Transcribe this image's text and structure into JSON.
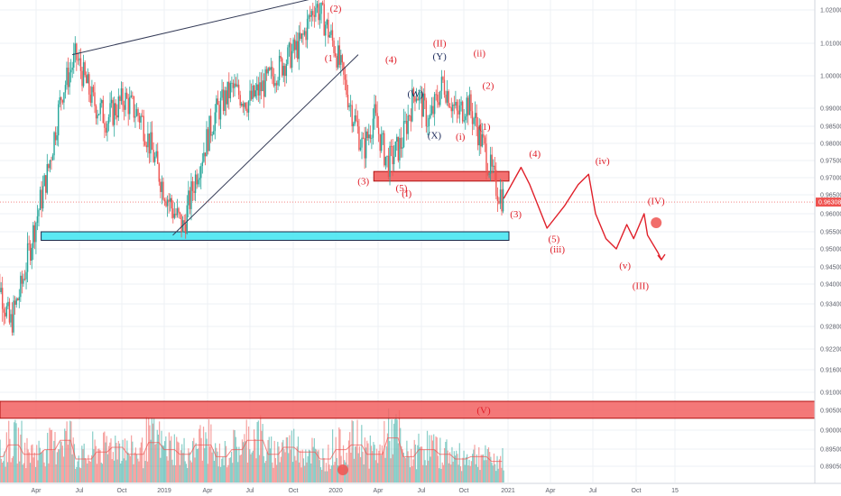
{
  "chart_data": {
    "type": "candlestick",
    "instrument_note": "",
    "colors": {
      "up": "#26a69a",
      "down": "#ef5350",
      "wave_red": "#e0202a",
      "wave_navy": "#1c2a5a",
      "support_zone": "#49e6f2",
      "resistance_zone": "#f26060",
      "current_price_bg": "#ef5350",
      "grid": "#eef0f4",
      "axis_text": "#5d606b"
    },
    "y_axis": {
      "ylim": [
        0.888,
        1.024
      ],
      "ticks": [
        "1.02000",
        "1.01000",
        "1.00000",
        "0.99000",
        "0.98500",
        "0.98000",
        "0.97500",
        "0.97000",
        "0.96500",
        "0.96000",
        "0.95500",
        "0.95000",
        "0.94500",
        "0.94000",
        "0.93400",
        "0.92800",
        "0.92200",
        "0.91600",
        "0.91000",
        "0.90500",
        "0.90000",
        "0.89500",
        "0.89050"
      ],
      "current_price": "0.96308"
    },
    "x_axis": {
      "ticks": [
        "Apr",
        "Jul",
        "Oct",
        "2019",
        "Apr",
        "Jul",
        "Oct",
        "2020",
        "Apr",
        "Jul",
        "Oct",
        "2021",
        "Apr",
        "Jul",
        "Oct",
        "15"
      ]
    },
    "price_path": [
      {
        "t": 0.0,
        "p": 0.965
      },
      {
        "t": 0.05,
        "p": 0.942
      },
      {
        "t": 0.12,
        "p": 0.928
      },
      {
        "t": 0.18,
        "p": 0.938
      },
      {
        "t": 0.26,
        "p": 0.956
      },
      {
        "t": 0.34,
        "p": 0.972
      },
      {
        "t": 0.42,
        "p": 0.995
      },
      {
        "t": 0.5,
        "p": 1.006
      },
      {
        "t": 0.6,
        "p": 0.992
      },
      {
        "t": 0.68,
        "p": 0.987
      },
      {
        "t": 0.78,
        "p": 0.993
      },
      {
        "t": 0.88,
        "p": 0.987
      },
      {
        "t": 0.95,
        "p": 0.976
      },
      {
        "t": 1.0,
        "p": 0.968
      },
      {
        "t": 1.05,
        "p": 0.962
      },
      {
        "t": 1.12,
        "p": 0.956
      },
      {
        "t": 1.2,
        "p": 0.972
      },
      {
        "t": 1.3,
        "p": 0.988
      },
      {
        "t": 1.4,
        "p": 0.996
      },
      {
        "t": 1.5,
        "p": 0.992
      },
      {
        "t": 1.6,
        "p": 0.998
      },
      {
        "t": 1.7,
        "p": 1.004
      },
      {
        "t": 1.8,
        "p": 1.01
      },
      {
        "t": 1.88,
        "p": 1.022
      },
      {
        "t": 1.94,
        "p": 1.016
      },
      {
        "t": 2.0,
        "p": 1.008
      },
      {
        "t": 2.08,
        "p": 0.992
      },
      {
        "t": 2.16,
        "p": 0.978
      },
      {
        "t": 2.22,
        "p": 0.988
      },
      {
        "t": 2.3,
        "p": 0.974
      },
      {
        "t": 2.38,
        "p": 0.98
      },
      {
        "t": 2.46,
        "p": 0.996
      },
      {
        "t": 2.54,
        "p": 0.986
      },
      {
        "t": 2.62,
        "p": 0.998
      },
      {
        "t": 2.7,
        "p": 0.988
      },
      {
        "t": 2.76,
        "p": 0.992
      },
      {
        "t": 2.8,
        "p": 0.987
      },
      {
        "t": 2.86,
        "p": 0.978
      },
      {
        "t": 2.92,
        "p": 0.968
      },
      {
        "t": 2.97,
        "p": 0.964
      }
    ],
    "volume_profile": [
      0.55,
      0.8,
      0.6,
      0.7,
      0.9,
      0.5,
      0.65,
      0.75,
      0.6,
      0.85,
      0.7,
      0.6,
      0.8,
      0.55,
      0.7,
      0.9,
      0.6,
      0.75,
      0.65,
      0.5,
      0.7,
      0.8,
      0.6,
      0.95,
      0.55,
      0.7,
      0.6,
      0.5,
      0.55,
      0.45
    ],
    "zones": [
      {
        "name": "support",
        "start": 0.3,
        "end": 3.0,
        "low": 0.9525,
        "high": 0.955
      },
      {
        "name": "resistance",
        "start": 2.22,
        "end": 3.0,
        "low": 0.969,
        "high": 0.9718
      },
      {
        "name": "wave-v-target",
        "start": 0.0,
        "end": 3.1,
        "low": 0.903,
        "high": 0.9075,
        "label": "(V)"
      }
    ],
    "trendlines": [
      {
        "from": [
          0.48,
          1.0065
        ],
        "to": [
          1.92,
          1.024
        ]
      },
      {
        "from": [
          1.06,
          0.954
        ],
        "to": [
          2.13,
          1.0065
        ]
      }
    ],
    "projection": [
      {
        "t": 2.97,
        "p": 0.964
      },
      {
        "t": 3.07,
        "p": 0.973
      },
      {
        "t": 3.12,
        "p": 0.968
      },
      {
        "t": 3.22,
        "p": 0.956
      },
      {
        "t": 3.32,
        "p": 0.962
      },
      {
        "t": 3.4,
        "p": 0.968
      },
      {
        "t": 3.46,
        "p": 0.971
      },
      {
        "t": 3.5,
        "p": 0.96
      },
      {
        "t": 3.56,
        "p": 0.953
      },
      {
        "t": 3.62,
        "p": 0.95
      },
      {
        "t": 3.68,
        "p": 0.957
      },
      {
        "t": 3.72,
        "p": 0.953
      },
      {
        "t": 3.78,
        "p": 0.96
      },
      {
        "t": 3.8,
        "p": 0.954
      },
      {
        "t": 3.86,
        "p": 0.949
      },
      {
        "t": 3.88,
        "p": 0.947
      }
    ],
    "wave_labels": [
      {
        "text": "(2)",
        "t": 2.0,
        "p": 1.0195,
        "color": "red"
      },
      {
        "text": "(1",
        "t": 1.96,
        "p": 1.0045,
        "color": "red"
      },
      {
        "text": "(4)",
        "t": 2.32,
        "p": 1.004,
        "color": "red"
      },
      {
        "text": "(3)",
        "t": 2.16,
        "p": 0.968,
        "color": "red"
      },
      {
        "text": "(5)",
        "t": 2.38,
        "p": 0.966,
        "color": "red"
      },
      {
        "text": "(I)",
        "t": 2.41,
        "p": 0.9645,
        "color": "red"
      },
      {
        "text": "(W)",
        "t": 2.46,
        "p": 0.9935,
        "color": "navy"
      },
      {
        "text": "(X)",
        "t": 2.57,
        "p": 0.9815,
        "color": "navy"
      },
      {
        "text": "(Y)",
        "t": 2.6,
        "p": 1.005,
        "color": "navy"
      },
      {
        "text": "(II)",
        "t": 2.6,
        "p": 1.009,
        "color": "red"
      },
      {
        "text": "(i)",
        "t": 2.72,
        "p": 0.981,
        "color": "red"
      },
      {
        "text": "(ii)",
        "t": 2.83,
        "p": 1.006,
        "color": "red"
      },
      {
        "text": "(2)",
        "t": 2.88,
        "p": 0.996,
        "color": "red"
      },
      {
        "text": "(1)",
        "t": 2.86,
        "p": 0.984,
        "color": "red"
      },
      {
        "text": "(4)",
        "t": 3.15,
        "p": 0.976,
        "color": "red"
      },
      {
        "text": "(3)",
        "t": 3.04,
        "p": 0.959,
        "color": "red"
      },
      {
        "text": "(iv)",
        "t": 3.54,
        "p": 0.974,
        "color": "red"
      },
      {
        "text": "(5)",
        "t": 3.26,
        "p": 0.952,
        "color": "red"
      },
      {
        "text": "(iii)",
        "t": 3.28,
        "p": 0.949,
        "color": "red"
      },
      {
        "text": "(IV)",
        "t": 3.85,
        "p": 0.9625,
        "color": "red"
      },
      {
        "text": "(v)",
        "t": 3.67,
        "p": 0.9445,
        "color": "red"
      },
      {
        "text": "(III)",
        "t": 3.76,
        "p": 0.9385,
        "color": "red"
      }
    ]
  }
}
